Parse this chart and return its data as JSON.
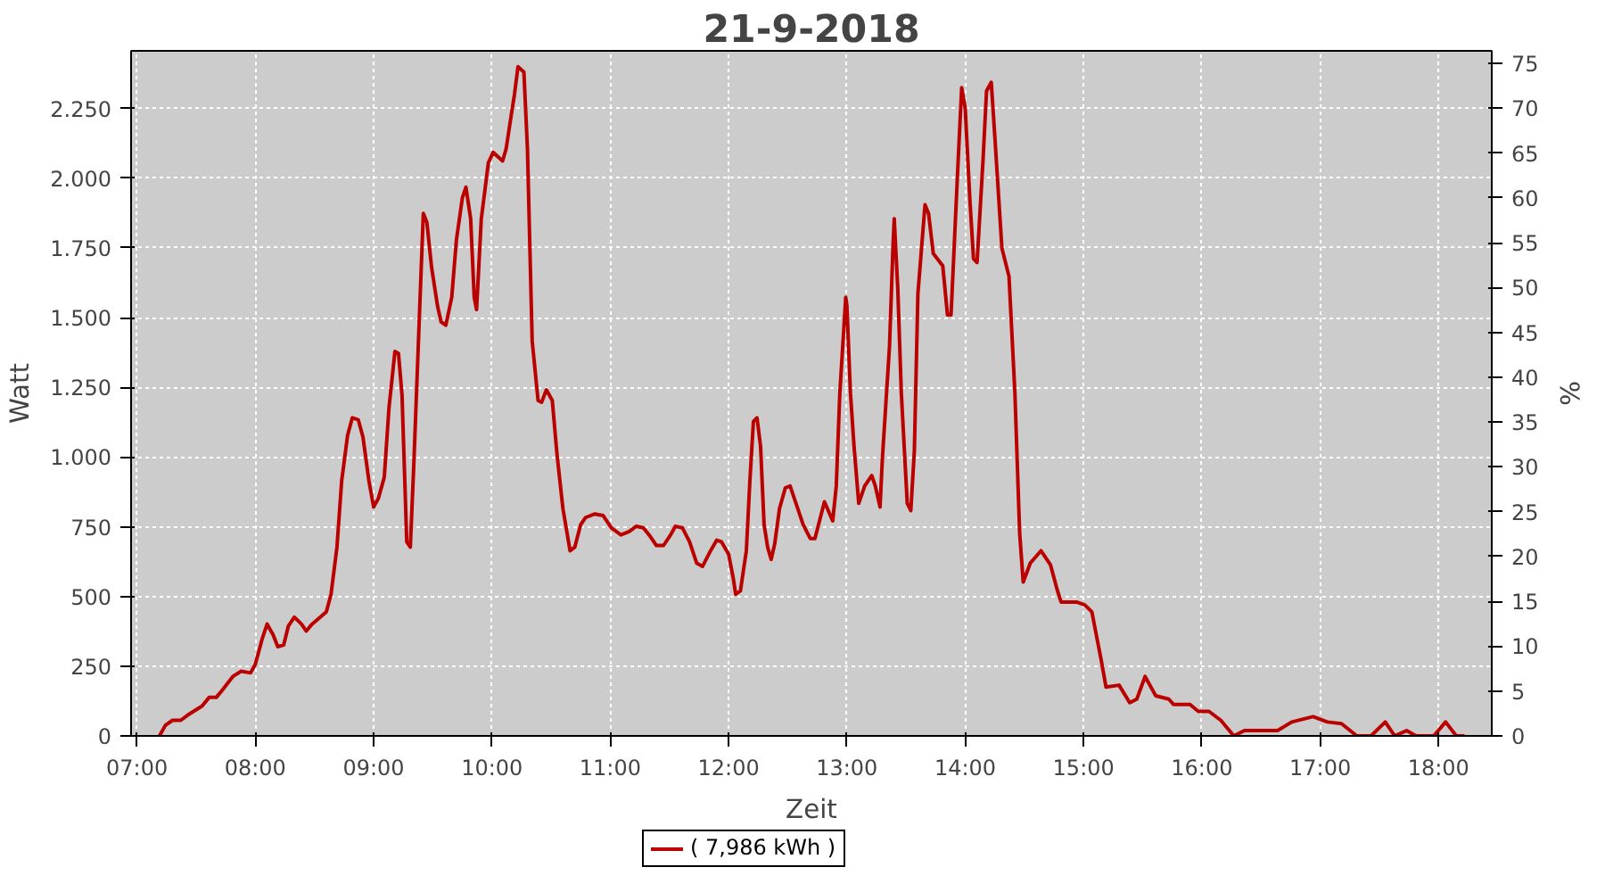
{
  "chart_data": {
    "type": "line",
    "title": "21-9-2018",
    "xlabel": "Zeit",
    "ylabel": "Watt",
    "y2label": "%",
    "x": [
      7.19,
      7.24,
      7.3,
      7.37,
      7.43,
      7.55,
      7.61,
      7.67,
      7.73,
      7.81,
      7.88,
      7.96,
      8.0,
      8.06,
      8.1,
      8.15,
      8.19,
      8.24,
      8.28,
      8.33,
      8.39,
      8.43,
      8.48,
      8.55,
      8.6,
      8.64,
      8.69,
      8.73,
      8.78,
      8.82,
      8.87,
      8.91,
      8.96,
      9.0,
      9.04,
      9.09,
      9.13,
      9.18,
      9.21,
      9.24,
      9.28,
      9.31,
      9.34,
      9.39,
      9.42,
      9.45,
      9.49,
      9.54,
      9.57,
      9.61,
      9.66,
      9.7,
      9.75,
      9.78,
      9.82,
      9.85,
      9.87,
      9.91,
      9.97,
      10.01,
      10.09,
      10.12,
      10.16,
      10.19,
      10.22,
      10.27,
      10.3,
      10.34,
      10.39,
      10.42,
      10.46,
      10.51,
      10.55,
      10.6,
      10.66,
      10.7,
      10.75,
      10.79,
      10.87,
      10.94,
      11.01,
      11.09,
      11.16,
      11.22,
      11.28,
      11.34,
      11.39,
      11.45,
      11.51,
      11.55,
      11.61,
      11.67,
      11.73,
      11.78,
      11.84,
      11.9,
      11.94,
      12.0,
      12.04,
      12.06,
      12.1,
      12.15,
      12.18,
      12.21,
      12.24,
      12.27,
      12.3,
      12.33,
      12.36,
      12.39,
      12.43,
      12.48,
      12.52,
      12.58,
      12.63,
      12.69,
      12.73,
      12.81,
      12.88,
      12.91,
      12.94,
      12.99,
      13.0,
      13.03,
      13.06,
      13.1,
      13.15,
      13.21,
      13.24,
      13.28,
      13.3,
      13.36,
      13.39,
      13.4,
      13.43,
      13.46,
      13.51,
      13.54,
      13.57,
      13.6,
      13.66,
      13.69,
      13.73,
      13.81,
      13.85,
      13.88,
      13.94,
      13.97,
      14.0,
      14.04,
      14.07,
      14.1,
      14.15,
      14.18,
      14.22,
      14.25,
      14.31,
      14.37,
      14.42,
      14.46,
      14.49,
      14.55,
      14.64,
      14.72,
      14.78,
      14.81,
      14.94,
      15.01,
      15.07,
      15.15,
      15.19,
      15.3,
      15.39,
      15.45,
      15.52,
      15.61,
      15.72,
      15.76,
      15.9,
      15.97,
      16.06,
      16.16,
      16.27,
      16.36,
      16.64,
      16.76,
      16.94,
      17.06,
      17.18,
      17.31,
      17.43,
      17.55,
      17.63,
      17.73,
      17.81,
      17.96,
      18.06,
      18.15,
      18.22
    ],
    "series": [
      {
        "name": "( 7,986 kWh )",
        "color": "#bb0000",
        "values": [
          0,
          38,
          56,
          56,
          75,
          107,
          138,
          138,
          169,
          213,
          232,
          226,
          257,
          351,
          401,
          363,
          320,
          326,
          395,
          426,
          401,
          376,
          401,
          426,
          445,
          508,
          677,
          915,
          1078,
          1141,
          1134,
          1072,
          915,
          821,
          852,
          928,
          1178,
          1379,
          1372,
          1222,
          696,
          677,
          978,
          1542,
          1874,
          1842,
          1680,
          1542,
          1485,
          1473,
          1573,
          1780,
          1930,
          1968,
          1855,
          1573,
          1529,
          1855,
          2056,
          2093,
          2062,
          2106,
          2218,
          2300,
          2400,
          2381,
          2106,
          1416,
          1203,
          1197,
          1241,
          1203,
          1009,
          815,
          664,
          677,
          758,
          783,
          796,
          790,
          746,
          721,
          733,
          752,
          746,
          714,
          683,
          683,
          721,
          752,
          746,
          696,
          620,
          608,
          658,
          702,
          696,
          652,
          564,
          508,
          520,
          664,
          915,
          1128,
          1141,
          1040,
          758,
          677,
          633,
          689,
          815,
          890,
          896,
          821,
          758,
          708,
          708,
          840,
          771,
          896,
          1228,
          1573,
          1542,
          1228,
          1040,
          834,
          896,
          934,
          896,
          821,
          996,
          1398,
          1761,
          1855,
          1604,
          1228,
          834,
          808,
          1022,
          1586,
          1905,
          1874,
          1730,
          1686,
          1510,
          1510,
          2062,
          2325,
          2250,
          1918,
          1711,
          1698,
          2062,
          2313,
          2344,
          2150,
          1749,
          1648,
          1228,
          727,
          552,
          620,
          664,
          614,
          520,
          480,
          480,
          470,
          445,
          270,
          175,
          182,
          119,
          132,
          213,
          144,
          132,
          113,
          113,
          88,
          88,
          56,
          0,
          19,
          19,
          50,
          69,
          50,
          44,
          0,
          0,
          50,
          0,
          19,
          0,
          0,
          50,
          0,
          0
        ]
      }
    ],
    "xlim": [
      6.95,
      18.45
    ],
    "xticks": [
      {
        "value": 7,
        "label": "07:00"
      },
      {
        "value": 8,
        "label": "08:00"
      },
      {
        "value": 9,
        "label": "09:00"
      },
      {
        "value": 10,
        "label": "10:00"
      },
      {
        "value": 11,
        "label": "11:00"
      },
      {
        "value": 12,
        "label": "12:00"
      },
      {
        "value": 13,
        "label": "13:00"
      },
      {
        "value": 14,
        "label": "14:00"
      },
      {
        "value": 15,
        "label": "15:00"
      },
      {
        "value": 16,
        "label": "16:00"
      },
      {
        "value": 17,
        "label": "17:00"
      },
      {
        "value": 18,
        "label": "18:00"
      }
    ],
    "ylim": [
      0,
      2457
    ],
    "yticks": [
      0,
      250,
      500,
      750,
      {
        "value": 1000,
        "label": "1.000"
      },
      {
        "value": 1250,
        "label": "1.250"
      },
      {
        "value": 1500,
        "label": "1.500"
      },
      {
        "value": 1750,
        "label": "1.750"
      },
      {
        "value": 2000,
        "label": "2.000"
      },
      {
        "value": 2250,
        "label": "2.250"
      }
    ],
    "y2lim": [
      0,
      76.4
    ],
    "y2ticks": [
      0,
      5,
      10,
      15,
      20,
      25,
      30,
      35,
      40,
      45,
      50,
      55,
      60,
      65,
      70,
      75
    ],
    "grid": true,
    "legend": "bottom",
    "line_style": "solid",
    "marker": "none"
  }
}
